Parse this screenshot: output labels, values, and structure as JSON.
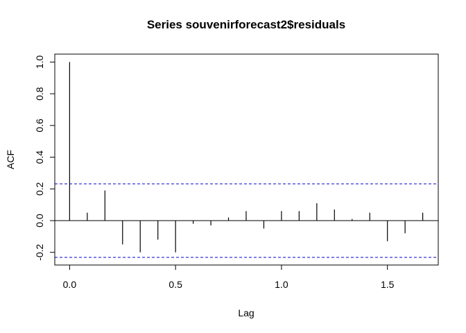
{
  "chart_data": {
    "type": "bar",
    "title": "Series  souvenirforecast2$residuals",
    "xlabel": "Lag",
    "ylabel": "ACF",
    "xlim": [
      -0.07,
      1.74
    ],
    "ylim": [
      -0.28,
      1.05
    ],
    "x_ticks": [
      "0.0",
      "0.5",
      "1.0",
      "1.5"
    ],
    "y_ticks": [
      "-0.2",
      "0.0",
      "0.2",
      "0.4",
      "0.6",
      "0.8",
      "1.0"
    ],
    "x_tick_values": [
      0.0,
      0.5,
      1.0,
      1.5
    ],
    "y_tick_values": [
      -0.2,
      0.0,
      0.2,
      0.4,
      0.6,
      0.8,
      1.0
    ],
    "confidence_bound": 0.232,
    "confidence_color": "#0000cc",
    "grid": false,
    "lags": [
      0.0,
      0.0833,
      0.1667,
      0.25,
      0.3333,
      0.4167,
      0.5,
      0.5833,
      0.6667,
      0.75,
      0.8333,
      0.9167,
      1.0,
      1.0833,
      1.1667,
      1.25,
      1.3333,
      1.4167,
      1.5,
      1.5833,
      1.6667
    ],
    "acf": [
      1.0,
      0.05,
      0.19,
      -0.15,
      -0.2,
      -0.12,
      -0.2,
      -0.02,
      -0.03,
      0.02,
      0.06,
      -0.05,
      0.06,
      0.06,
      0.11,
      0.07,
      0.01,
      0.05,
      -0.13,
      -0.08,
      0.05
    ]
  }
}
